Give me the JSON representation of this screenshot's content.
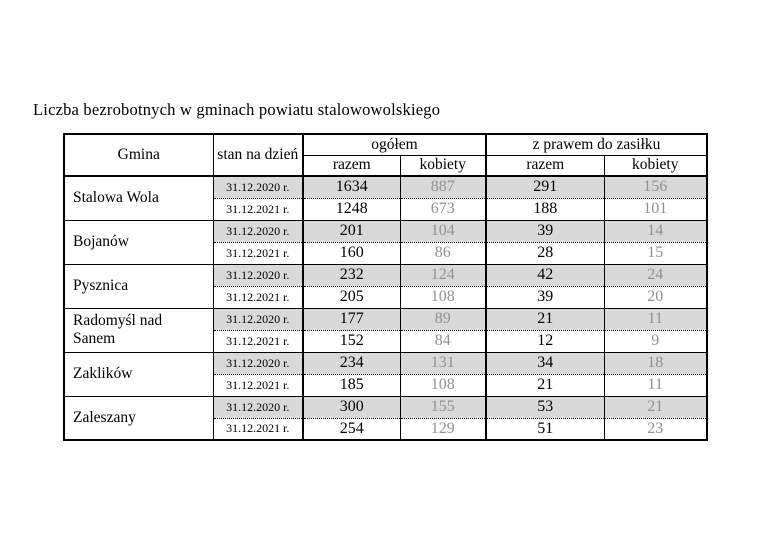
{
  "page": {
    "title": "Liczba bezrobotnych w gminach powiatu stalowowolskiego"
  },
  "table": {
    "headers": {
      "gmina": "Gmina",
      "date": "stan na dzień",
      "total": "ogółem",
      "benefit": "z prawem do zasiłku",
      "razem": "razem",
      "kobiety": "kobiety"
    },
    "colors": {
      "shaded_row_bg": "#d9d9d9",
      "kobiety_text": "#919191",
      "border": "#000000"
    },
    "groups": [
      {
        "name": "Stalowa Wola",
        "rows": [
          {
            "date": "31.12.2020 r.",
            "values": [
              "1634",
              "887",
              "291",
              "156"
            ]
          },
          {
            "date": "31.12.2021 r.",
            "values": [
              "1248",
              "673",
              "188",
              "101"
            ]
          }
        ]
      },
      {
        "name": "Bojanów",
        "rows": [
          {
            "date": "31.12.2020 r.",
            "values": [
              "201",
              "104",
              "39",
              "14"
            ]
          },
          {
            "date": "31.12.2021 r.",
            "values": [
              "160",
              "86",
              "28",
              "15"
            ]
          }
        ]
      },
      {
        "name": "Pysznica",
        "rows": [
          {
            "date": "31.12.2020 r.",
            "values": [
              "232",
              "124",
              "42",
              "24"
            ]
          },
          {
            "date": "31.12.2021 r.",
            "values": [
              "205",
              "108",
              "39",
              "20"
            ]
          }
        ]
      },
      {
        "name": "Radomyśl nad Sanem",
        "rows": [
          {
            "date": "31.12.2020 r.",
            "values": [
              "177",
              "89",
              "21",
              "11"
            ]
          },
          {
            "date": "31.12.2021 r.",
            "values": [
              "152",
              "84",
              "12",
              "9"
            ]
          }
        ]
      },
      {
        "name": "Zaklików",
        "rows": [
          {
            "date": "31.12.2020 r.",
            "values": [
              "234",
              "131",
              "34",
              "18"
            ]
          },
          {
            "date": "31.12.2021 r.",
            "values": [
              "185",
              "108",
              "21",
              "11"
            ]
          }
        ]
      },
      {
        "name": "Zaleszany",
        "rows": [
          {
            "date": "31.12.2020 r.",
            "values": [
              "300",
              "155",
              "53",
              "21"
            ]
          },
          {
            "date": "31.12.2021 r.",
            "values": [
              "254",
              "129",
              "51",
              "23"
            ]
          }
        ]
      }
    ]
  }
}
